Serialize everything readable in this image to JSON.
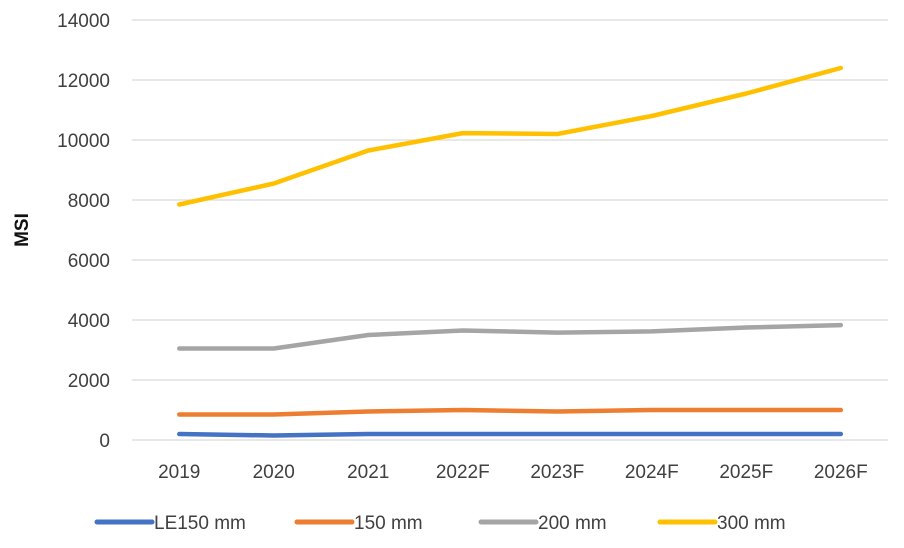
{
  "chart_data": {
    "type": "line",
    "title": "",
    "xlabel": "",
    "ylabel": "MSI",
    "ylim": [
      0,
      14000
    ],
    "yticks": [
      "0",
      "2000",
      "4000",
      "6000",
      "8000",
      "10000",
      "12000",
      "14000"
    ],
    "grid": true,
    "legend_position": "bottom",
    "categories": [
      "2019",
      "2020",
      "2021",
      "2022F",
      "2023F",
      "2024F",
      "2025F",
      "2026F"
    ],
    "series": [
      {
        "name": "LE150 mm",
        "color": "#4472C4",
        "values": [
          200,
          150,
          200,
          200,
          200,
          200,
          200,
          200
        ]
      },
      {
        "name": "150 mm",
        "color": "#ED7D31",
        "values": [
          850,
          850,
          950,
          1000,
          950,
          1000,
          1000,
          1000
        ]
      },
      {
        "name": "200 mm",
        "color": "#A5A5A5",
        "values": [
          3050,
          3050,
          3500,
          3650,
          3580,
          3620,
          3750,
          3830
        ]
      },
      {
        "name": "300 mm",
        "color": "#FFC000",
        "values": [
          7850,
          8550,
          9650,
          10230,
          10200,
          10800,
          11550,
          12400
        ]
      }
    ]
  }
}
